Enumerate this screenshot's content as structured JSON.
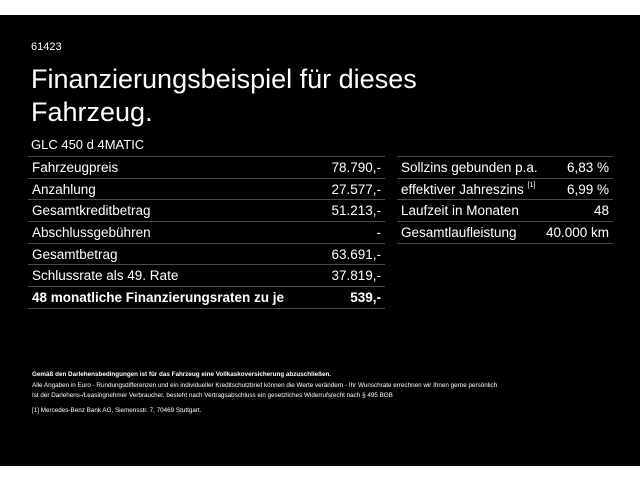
{
  "id": "61423",
  "title": "Finanzierungsbeispiel für dieses Fahrzeug.",
  "model": "GLC 450 d 4MATIC",
  "left_rows": [
    {
      "label": "Fahrzeugpreis",
      "value": "78.790,-"
    },
    {
      "label": "Anzahlung",
      "value": "27.577,-"
    },
    {
      "label": "Gesamtkreditbetrag",
      "value": "51.213,-"
    },
    {
      "label": "Abschlussgebühren",
      "value": "-"
    },
    {
      "label": "Gesamtbetrag",
      "value": "63.691,-"
    },
    {
      "label": "Schlussrate als 49. Rate",
      "value": "37.819,-"
    },
    {
      "label": "48 monatliche Finanzierungsraten zu je",
      "value": "539,-"
    }
  ],
  "right_rows": [
    {
      "label": "Sollzins gebunden p.a.",
      "value": "6,83 %"
    },
    {
      "label": "effektiver Jahreszins",
      "sup": "[1]",
      "value": "6,99 %"
    },
    {
      "label": "Laufzeit in Monaten",
      "value": "48"
    },
    {
      "label": "Gesamtlaufleistung",
      "value": "40.000 km"
    }
  ],
  "notes": {
    "bold": "Gemäß den Darlehensbedingungen ist für das Fahrzeug eine Vollkaskoversicherung abzuschließen.",
    "line1": "Alle Angaben in Euro - Rundungsdifferenzen und ein individueller Kreditschutzbrief können die Werte verändern - Ihr Wunschrate errechnen wir Ihnen gerne persönlich",
    "line2": "Ist der Darlehens-/Leasingnehmer Verbraucher, besteht nach Vertragsabschluss ein gesetzliches Widerrufsrecht nach § 495 BGB",
    "footnote_mark": "[1]",
    "footnote": "Mercedes-Benz Bank AG, Siemensstr. 7, 70469 Stuttgart."
  }
}
